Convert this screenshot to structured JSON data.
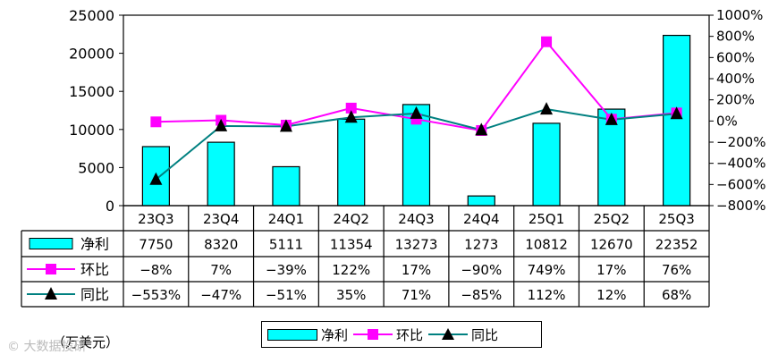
{
  "chart_data": {
    "type": "bar",
    "categories": [
      "23Q3",
      "23Q4",
      "24Q1",
      "24Q2",
      "24Q3",
      "24Q4",
      "25Q1",
      "25Q2",
      "25Q3"
    ],
    "series": [
      {
        "name": "净利",
        "kind": "bar",
        "axis": "left",
        "color": "#00FFFF",
        "values": [
          7750,
          8320,
          5111,
          11354,
          13273,
          1273,
          10812,
          12670,
          22352
        ],
        "labels": [
          "7750",
          "8320",
          "5111",
          "11354",
          "13273",
          "1273",
          "10812",
          "12670",
          "22352"
        ]
      },
      {
        "name": "环比",
        "kind": "line",
        "axis": "right",
        "color": "#FF00FF",
        "marker": "square",
        "values": [
          -8,
          7,
          -39,
          122,
          17,
          -90,
          749,
          17,
          76
        ],
        "labels": [
          "−8%",
          "7%",
          "−39%",
          "122%",
          "17%",
          "−90%",
          "749%",
          "17%",
          "76%"
        ]
      },
      {
        "name": "同比",
        "kind": "line",
        "axis": "right",
        "color": "#008080",
        "marker": "triangle",
        "values": [
          -553,
          -47,
          -51,
          35,
          71,
          -85,
          112,
          12,
          68
        ],
        "labels": [
          "−553%",
          "−47%",
          "−51%",
          "35%",
          "71%",
          "−85%",
          "112%",
          "12%",
          "68%"
        ]
      }
    ],
    "y_left": {
      "min": 0,
      "max": 25000,
      "ticks": [
        "0",
        "5000",
        "10000",
        "15000",
        "20000",
        "25000"
      ]
    },
    "y_right": {
      "min": -800,
      "max": 1000,
      "ticks": [
        "−800%",
        "−600%",
        "−400%",
        "−200%",
        "0%",
        "200%",
        "400%",
        "600%",
        "800%",
        "1000%"
      ]
    },
    "unit_label": "（万美元）",
    "legend": [
      "净利",
      "环比",
      "同比"
    ],
    "watermark": "© 大数据投研"
  }
}
